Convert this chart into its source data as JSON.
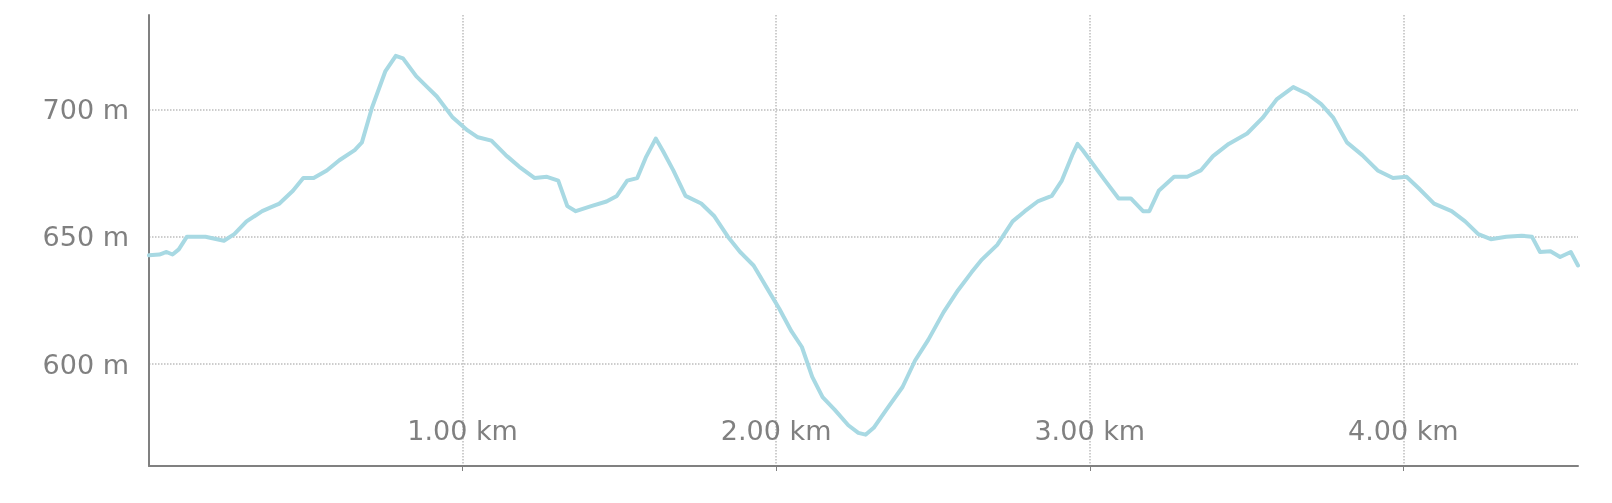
{
  "chart_data": {
    "type": "line",
    "xlim": [
      0,
      4.557
    ],
    "ylim": [
      560,
      737
    ],
    "xticks": [
      {
        "value": 1,
        "label": "1.00 km"
      },
      {
        "value": 2,
        "label": "2.00 km"
      },
      {
        "value": 3,
        "label": "3.00 km"
      },
      {
        "value": 4,
        "label": "4.00 km"
      }
    ],
    "yticks": [
      {
        "value": 600,
        "label": "600 m"
      },
      {
        "value": 650,
        "label": "650 m"
      },
      {
        "value": 700,
        "label": "700 m"
      }
    ],
    "grid": true,
    "marker": "none",
    "line_style": "solid",
    "series": [
      {
        "color": "#a8d9e3",
        "x": [
          0,
          0.033,
          0.056,
          0.075,
          0.095,
          0.121,
          0.18,
          0.239,
          0.272,
          0.311,
          0.361,
          0.416,
          0.459,
          0.492,
          0.525,
          0.567,
          0.607,
          0.656,
          0.679,
          0.711,
          0.754,
          0.787,
          0.81,
          0.852,
          0.885,
          0.918,
          0.967,
          1.016,
          1.049,
          1.092,
          1.138,
          1.18,
          1.23,
          1.269,
          1.305,
          1.334,
          1.361,
          1.41,
          1.459,
          1.492,
          1.525,
          1.557,
          1.584,
          1.616,
          1.639,
          1.672,
          1.711,
          1.761,
          1.803,
          1.846,
          1.885,
          1.928,
          1.967,
          2.01,
          2.049,
          2.082,
          2.115,
          2.148,
          2.187,
          2.23,
          2.262,
          2.285,
          2.311,
          2.351,
          2.403,
          2.443,
          2.485,
          2.534,
          2.58,
          2.623,
          2.656,
          2.705,
          2.754,
          2.793,
          2.836,
          2.879,
          2.911,
          2.944,
          2.961,
          2.977,
          3.007,
          3.049,
          3.092,
          3.131,
          3.17,
          3.19,
          3.22,
          3.269,
          3.311,
          3.354,
          3.393,
          3.443,
          3.502,
          3.551,
          3.597,
          3.649,
          3.695,
          3.738,
          3.777,
          3.82,
          3.869,
          3.918,
          3.967,
          4.01,
          4.049,
          4.098,
          4.154,
          4.197,
          4.239,
          4.279,
          4.328,
          4.377,
          4.41,
          4.436,
          4.469,
          4.5,
          4.534,
          4.557
        ],
        "values": [
          642.7,
          643,
          644,
          643,
          645,
          650,
          650,
          648.4,
          651,
          656,
          660,
          663,
          668,
          673,
          673,
          676,
          680,
          684,
          687,
          700.6,
          715,
          721,
          720,
          713,
          709,
          705,
          697,
          691.7,
          689,
          687.7,
          682,
          677.5,
          673,
          673.5,
          672,
          662,
          660,
          662,
          663.8,
          666,
          672,
          673,
          681,
          688.5,
          683.6,
          676,
          666,
          663,
          658,
          650,
          644,
          638.7,
          630.6,
          621.7,
          612.8,
          606.7,
          595,
          587,
          582,
          576,
          573,
          572.3,
          575,
          582,
          591,
          601.4,
          609.5,
          620.4,
          629,
          636,
          641,
          646.8,
          656,
          660,
          664,
          666,
          672,
          682,
          686.4,
          684,
          679,
          672,
          665,
          665,
          660,
          660,
          668,
          673.5,
          673.5,
          676,
          681.6,
          686.4,
          690.5,
          696.6,
          704,
          708.7,
          706,
          702,
          696.6,
          687,
          682,
          676,
          673,
          673.5,
          669,
          663,
          660,
          656,
          651,
          649,
          650,
          650.4,
          650,
          644,
          644.3,
          642,
          644,
          638.7
        ]
      }
    ]
  }
}
